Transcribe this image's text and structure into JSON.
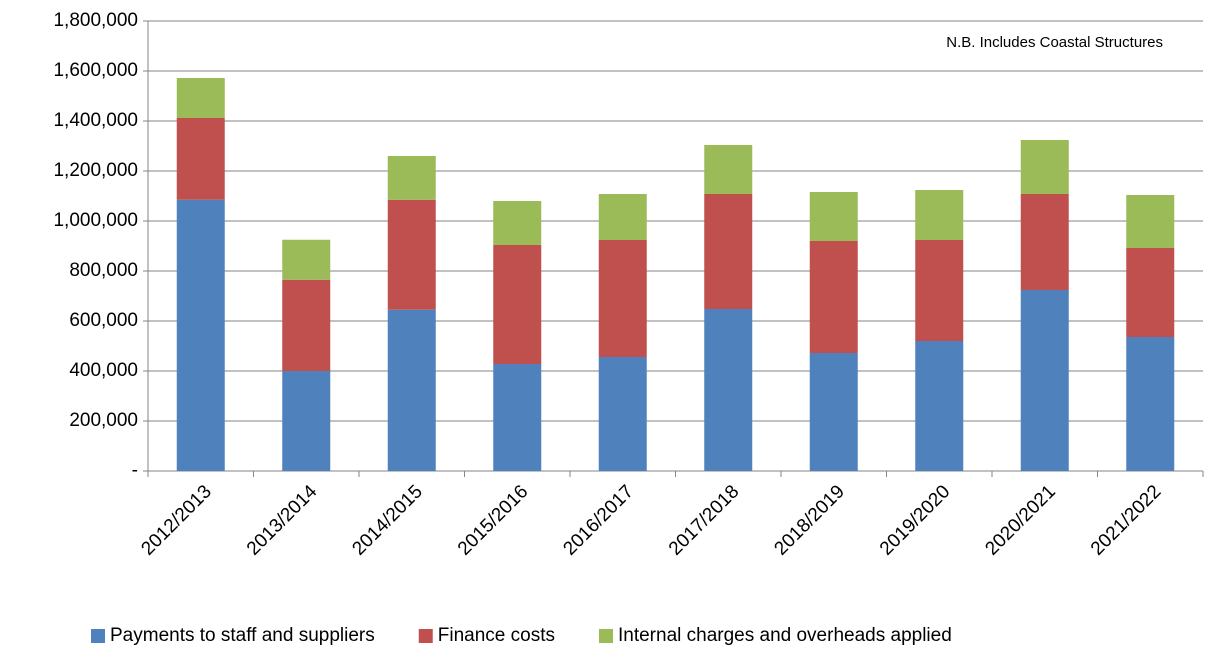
{
  "chart_data": {
    "type": "stacked_bar",
    "annotation": "N.B. Includes Coastal Structures",
    "categories": [
      "2012/2013",
      "2013/2014",
      "2014/2015",
      "2015/2016",
      "2016/2017",
      "2017/2018",
      "2018/2019",
      "2019/2020",
      "2020/2021",
      "2021/2022"
    ],
    "series": [
      {
        "name": "Payments to staff and suppliers",
        "color": "#4f81bd",
        "values": [
          1085000,
          400000,
          645000,
          428000,
          456000,
          648000,
          472000,
          520000,
          724000,
          536000
        ]
      },
      {
        "name": "Finance costs",
        "color": "#c0504d",
        "values": [
          327000,
          365000,
          440000,
          476000,
          468000,
          460000,
          448000,
          404000,
          384000,
          356000
        ]
      },
      {
        "name": "Internal charges and overheads applied",
        "color": "#9bbb59",
        "values": [
          160000,
          160000,
          175000,
          176000,
          184000,
          196000,
          196000,
          200000,
          216000,
          212000
        ]
      }
    ],
    "ylim": [
      0,
      1800000
    ],
    "yticks": [
      {
        "value": 0,
        "label": "-"
      },
      {
        "value": 200000,
        "label": "200,000"
      },
      {
        "value": 400000,
        "label": "400,000"
      },
      {
        "value": 600000,
        "label": "600,000"
      },
      {
        "value": 800000,
        "label": "800,000"
      },
      {
        "value": 1000000,
        "label": "1,000,000"
      },
      {
        "value": 1200000,
        "label": "1,200,000"
      },
      {
        "value": 1400000,
        "label": "1,400,000"
      },
      {
        "value": 1600000,
        "label": "1,600,000"
      },
      {
        "value": 1800000,
        "label": "1,800,000"
      }
    ],
    "grid": true,
    "legend": "bottom"
  }
}
